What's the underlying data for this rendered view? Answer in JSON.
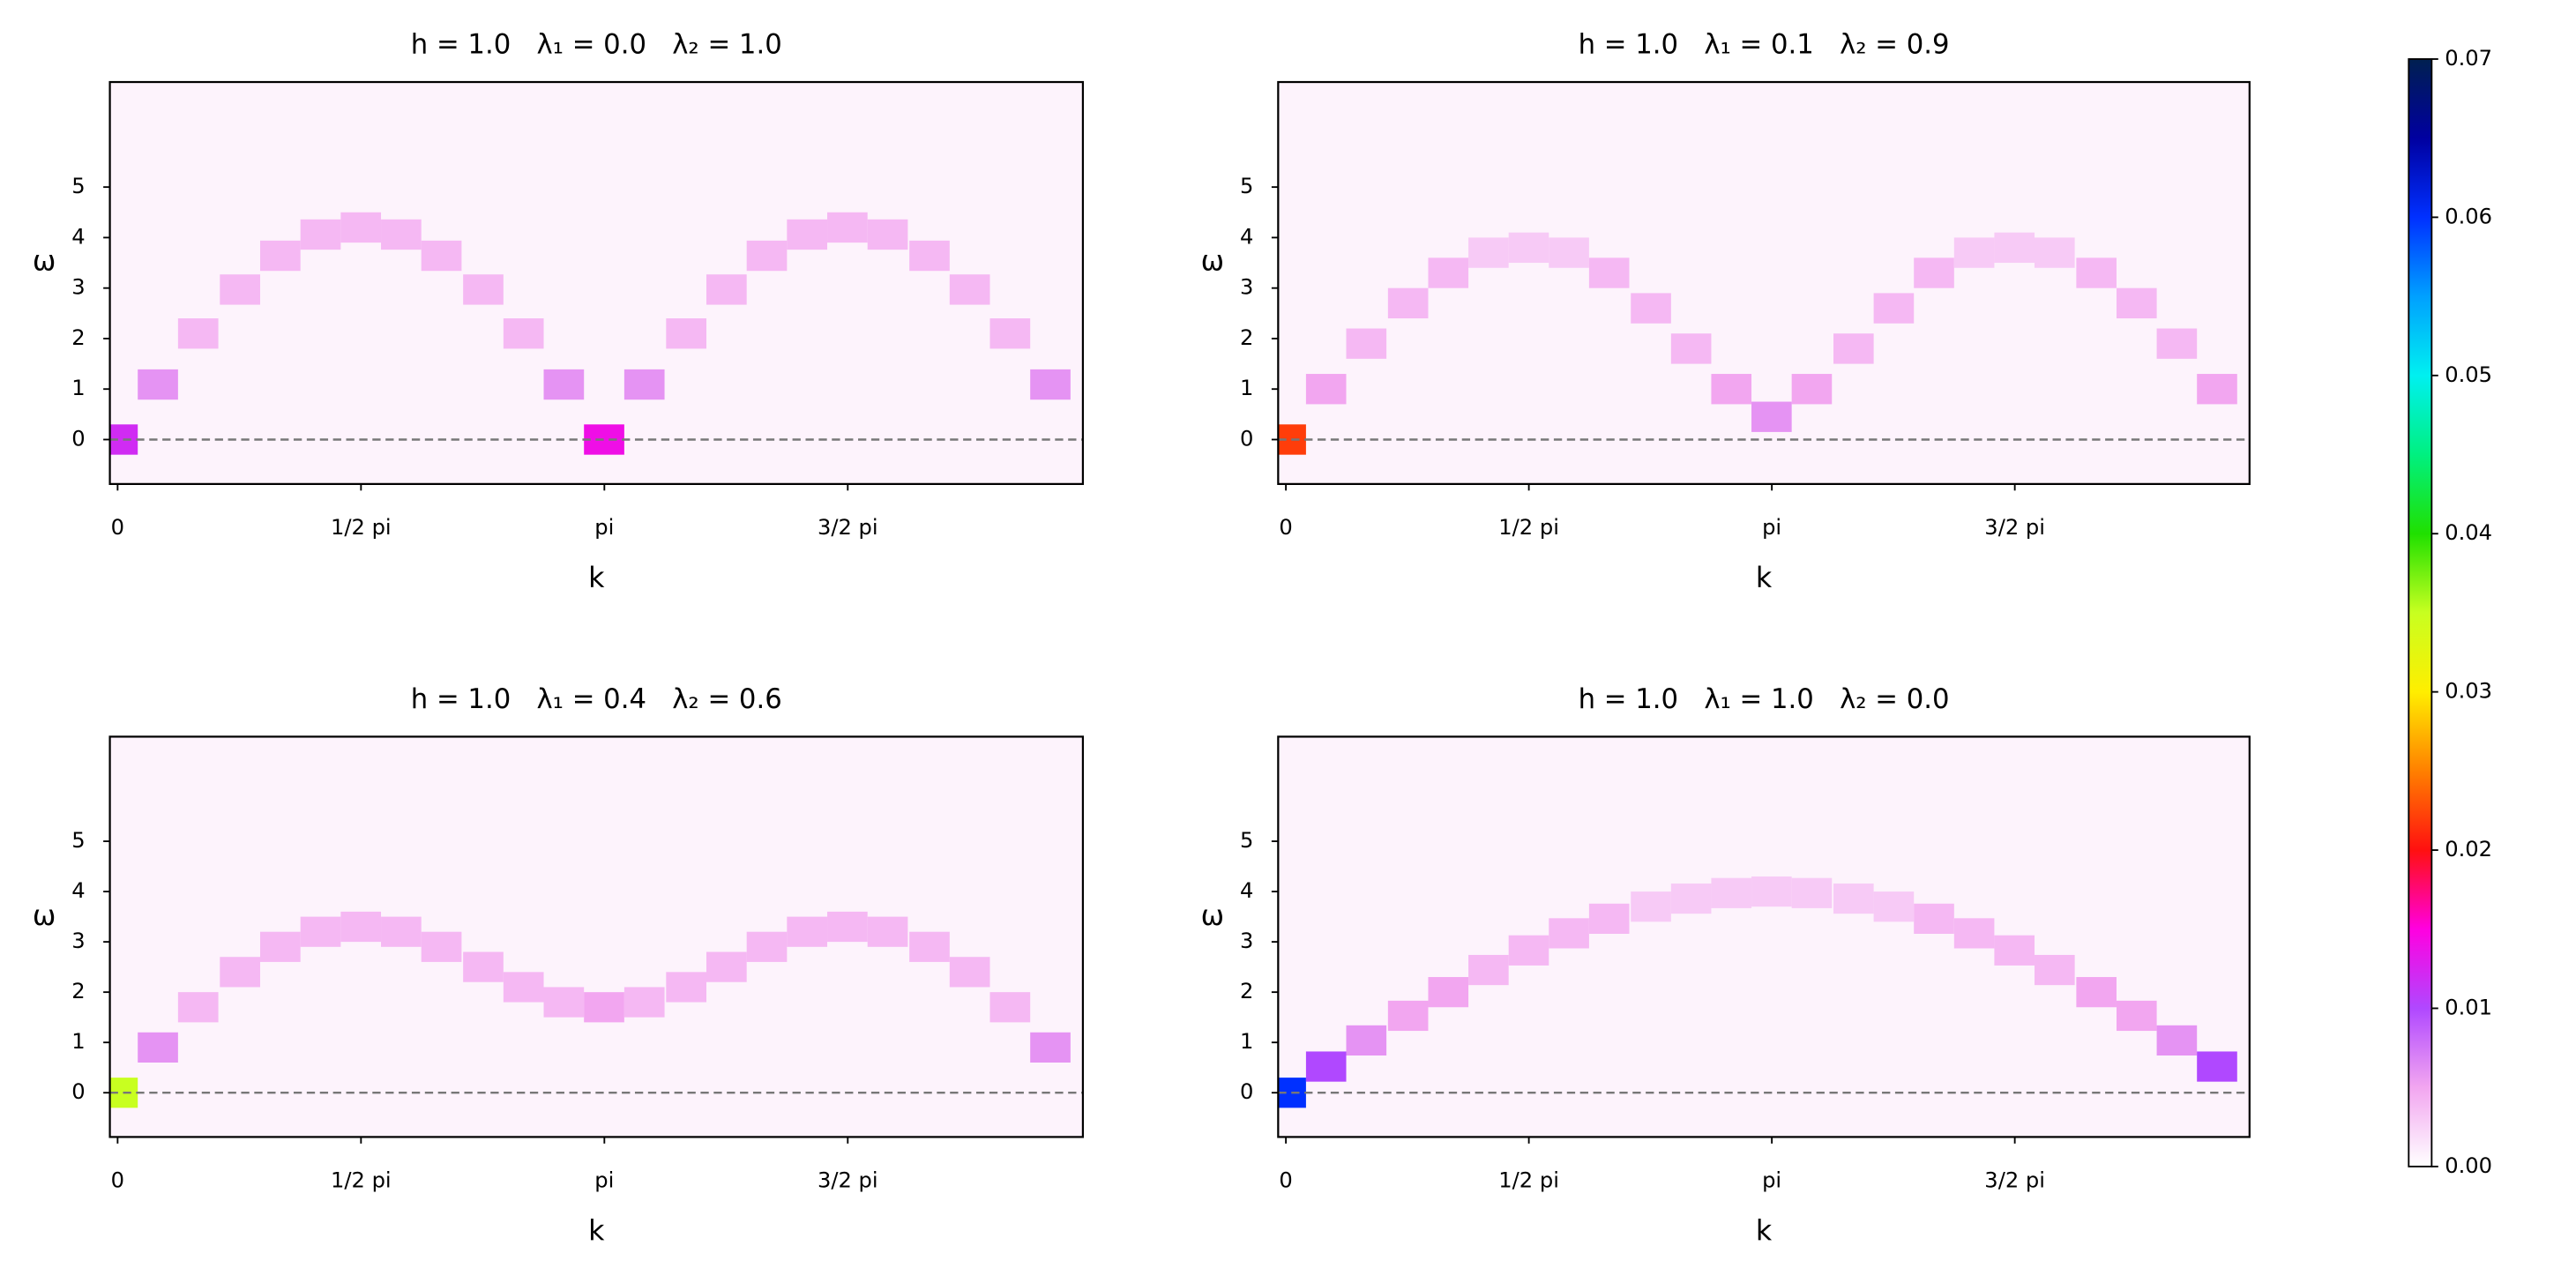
{
  "chart_data": [
    {
      "type": "heatmap",
      "title": "h = 1.0   λ₁ = 0.0   λ₂ = 1.0",
      "xlabel": "k",
      "ylabel": "ω",
      "xlim": [
        -0.05,
        6.23
      ],
      "ylim": [
        -0.88,
        7.08
      ],
      "xticks": [
        0,
        {
          "value": 1.5708,
          "label": "1/2 pi"
        },
        {
          "value": 3.1416,
          "label": "pi"
        },
        {
          "value": 4.7124,
          "label": "3/2 pi"
        }
      ],
      "yticks": [
        0,
        1,
        2,
        3,
        4,
        5
      ],
      "hline": 0,
      "x": [
        0,
        0.26,
        0.52,
        0.79,
        1.05,
        1.31,
        1.57,
        1.83,
        2.09,
        2.36,
        2.62,
        2.88,
        3.14,
        3.4,
        3.67,
        3.93,
        4.19,
        4.45,
        4.71,
        4.97,
        5.24,
        5.5,
        5.76,
        6.02
      ],
      "y": [
        0,
        1.09,
        2.1,
        2.97,
        3.64,
        4.06,
        4.2,
        4.06,
        3.64,
        2.97,
        2.1,
        1.09,
        0,
        1.09,
        2.1,
        2.97,
        3.64,
        4.06,
        4.2,
        4.06,
        3.64,
        2.97,
        2.1,
        1.09
      ],
      "values": [
        0.012,
        0.006,
        0.004,
        0.004,
        0.004,
        0.004,
        0.004,
        0.004,
        0.004,
        0.004,
        0.004,
        0.006,
        0.014,
        0.006,
        0.004,
        0.004,
        0.004,
        0.004,
        0.004,
        0.004,
        0.004,
        0.004,
        0.004,
        0.006
      ]
    },
    {
      "type": "heatmap",
      "title": "h = 1.0   λ₁ = 0.1   λ₂ = 0.9",
      "xlabel": "k",
      "ylabel": "ω",
      "xlim": [
        -0.05,
        6.23
      ],
      "ylim": [
        -0.88,
        7.08
      ],
      "xticks": [
        0,
        {
          "value": 1.5708,
          "label": "1/2 pi"
        },
        {
          "value": 3.1416,
          "label": "pi"
        },
        {
          "value": 4.7124,
          "label": "3/2 pi"
        }
      ],
      "yticks": [
        0,
        1,
        2,
        3,
        4,
        5
      ],
      "hline": 0,
      "x": [
        0,
        0.26,
        0.52,
        0.79,
        1.05,
        1.31,
        1.57,
        1.83,
        2.09,
        2.36,
        2.62,
        2.88,
        3.14,
        3.4,
        3.67,
        3.93,
        4.19,
        4.45,
        4.71,
        4.97,
        5.24,
        5.5,
        5.76,
        6.02
      ],
      "y": [
        0,
        1.0,
        1.9,
        2.7,
        3.3,
        3.7,
        3.8,
        3.7,
        3.3,
        2.6,
        1.8,
        1.0,
        0.45,
        1.0,
        1.8,
        2.6,
        3.3,
        3.7,
        3.8,
        3.7,
        3.3,
        2.7,
        1.9,
        1.0
      ],
      "values": [
        0.022,
        0.005,
        0.004,
        0.004,
        0.004,
        0.003,
        0.003,
        0.003,
        0.004,
        0.004,
        0.004,
        0.005,
        0.006,
        0.005,
        0.004,
        0.004,
        0.004,
        0.003,
        0.003,
        0.003,
        0.004,
        0.004,
        0.004,
        0.005
      ]
    },
    {
      "type": "heatmap",
      "title": "h = 1.0   λ₁ = 0.4   λ₂ = 0.6",
      "xlabel": "k",
      "ylabel": "ω",
      "xlim": [
        -0.05,
        6.23
      ],
      "ylim": [
        -0.88,
        7.08
      ],
      "xticks": [
        0,
        {
          "value": 1.5708,
          "label": "1/2 pi"
        },
        {
          "value": 3.1416,
          "label": "pi"
        },
        {
          "value": 4.7124,
          "label": "3/2 pi"
        }
      ],
      "yticks": [
        0,
        1,
        2,
        3,
        4,
        5
      ],
      "hline": 0,
      "x": [
        0,
        0.26,
        0.52,
        0.79,
        1.05,
        1.31,
        1.57,
        1.83,
        2.09,
        2.36,
        2.62,
        2.88,
        3.14,
        3.4,
        3.67,
        3.93,
        4.19,
        4.45,
        4.71,
        4.97,
        5.24,
        5.5,
        5.76,
        6.02
      ],
      "y": [
        0,
        0.9,
        1.7,
        2.4,
        2.9,
        3.2,
        3.3,
        3.2,
        2.9,
        2.5,
        2.1,
        1.8,
        1.7,
        1.8,
        2.1,
        2.5,
        2.9,
        3.2,
        3.3,
        3.2,
        2.9,
        2.4,
        1.7,
        0.9
      ],
      "values": [
        0.035,
        0.006,
        0.004,
        0.004,
        0.004,
        0.004,
        0.004,
        0.004,
        0.004,
        0.004,
        0.004,
        0.004,
        0.005,
        0.004,
        0.004,
        0.004,
        0.004,
        0.004,
        0.004,
        0.004,
        0.004,
        0.004,
        0.004,
        0.006
      ]
    },
    {
      "type": "heatmap",
      "title": "h = 1.0   λ₁ = 1.0   λ₂ = 0.0",
      "xlabel": "k",
      "ylabel": "ω",
      "xlim": [
        -0.05,
        6.23
      ],
      "ylim": [
        -0.88,
        7.08
      ],
      "xticks": [
        0,
        {
          "value": 1.5708,
          "label": "1/2 pi"
        },
        {
          "value": 3.1416,
          "label": "pi"
        },
        {
          "value": 4.7124,
          "label": "3/2 pi"
        }
      ],
      "yticks": [
        0,
        1,
        2,
        3,
        4,
        5
      ],
      "hline": 0,
      "x": [
        0,
        0.26,
        0.52,
        0.79,
        1.05,
        1.31,
        1.57,
        1.83,
        2.09,
        2.36,
        2.62,
        2.88,
        3.14,
        3.4,
        3.67,
        3.93,
        4.19,
        4.45,
        4.71,
        4.97,
        5.24,
        5.5,
        5.76,
        6.02
      ],
      "y": [
        0,
        0.52,
        1.04,
        1.53,
        2.0,
        2.44,
        2.83,
        3.17,
        3.46,
        3.7,
        3.86,
        3.97,
        4.0,
        3.97,
        3.86,
        3.7,
        3.46,
        3.17,
        2.83,
        2.44,
        2.0,
        1.53,
        1.04,
        0.52
      ],
      "values": [
        0.06,
        0.01,
        0.006,
        0.005,
        0.005,
        0.004,
        0.004,
        0.004,
        0.004,
        0.003,
        0.003,
        0.003,
        0.003,
        0.003,
        0.003,
        0.003,
        0.004,
        0.004,
        0.004,
        0.004,
        0.005,
        0.005,
        0.006,
        0.01
      ]
    },
    {
      "type": "colorbar",
      "ylim": [
        0,
        0.07
      ],
      "yticks": [
        {
          "value": 0,
          "label": "0.00"
        },
        {
          "value": 0.01,
          "label": "0.01"
        },
        {
          "value": 0.02,
          "label": "0.02"
        },
        {
          "value": 0.03,
          "label": "0.03"
        },
        {
          "value": 0.04,
          "label": "0.04"
        },
        {
          "value": 0.05,
          "label": "0.05"
        },
        {
          "value": 0.06,
          "label": "0.06"
        },
        {
          "value": 0.07,
          "label": "0.07"
        }
      ],
      "colors": [
        "#ffffff",
        "#f2a6f0",
        "#b048ff",
        "#ff00e0",
        "#ff1010",
        "#ff8000",
        "#ffee00",
        "#c8ff20",
        "#20e000",
        "#00f080",
        "#00f0f0",
        "#00a0ff",
        "#0030ff",
        "#0000a0",
        "#002050"
      ]
    }
  ]
}
